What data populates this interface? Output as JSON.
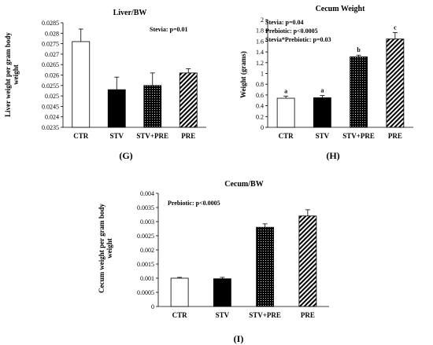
{
  "chart_data": [
    {
      "type": "bar",
      "title": "Liver/BW",
      "panel": "(G)",
      "ylabel_lines": [
        "Liver weight per gram body",
        "weight"
      ],
      "stats": [
        "Stevia: p=0.01"
      ],
      "categories": [
        "CTR",
        "STV",
        "STV+PRE",
        "PRE"
      ],
      "values": [
        0.0276,
        0.0253,
        0.0255,
        0.0261
      ],
      "errors": [
        0.0006,
        0.0006,
        0.0006,
        0.0002
      ],
      "ylim": [
        0.0235,
        0.0285
      ],
      "yticks": [
        "0.0235",
        "0.024",
        "0.0245",
        "0.025",
        "0.0255",
        "0.026",
        "0.0265",
        "0.027",
        "0.0275",
        "0.028",
        "0.0285"
      ],
      "sig_letters": []
    },
    {
      "type": "bar",
      "title": "Cecum Weight",
      "panel": "(H)",
      "ylabel_lines": [
        "Weight (grams)"
      ],
      "stats": [
        "Stevia: p=0.04",
        "Prebiotic: p<0.0005",
        "Stevia*Prebiotic: p=0.03"
      ],
      "categories": [
        "CTR",
        "STV",
        "STV+PRE",
        "PRE"
      ],
      "values": [
        0.54,
        0.55,
        1.31,
        1.64
      ],
      "errors": [
        0.04,
        0.04,
        0.03,
        0.12
      ],
      "ylim": [
        0,
        2
      ],
      "yticks": [
        "0",
        "0.2",
        "0.4",
        "0.6",
        "0.8",
        "1",
        "1.2",
        "1.4",
        "1.6",
        "1.8",
        "2"
      ],
      "sig_letters": [
        "a",
        "a",
        "b",
        "c"
      ]
    },
    {
      "type": "bar",
      "title": "Cecum/BW",
      "panel": "(I)",
      "ylabel_lines": [
        "Cecum weight per gram body",
        "weight"
      ],
      "stats": [
        "Prebiotic: p<0.0005"
      ],
      "categories": [
        "CTR",
        "STV",
        "STV+PRE",
        "PRE"
      ],
      "values": [
        0.001,
        0.00098,
        0.0028,
        0.0032
      ],
      "errors": [
        3e-05,
        5e-05,
        0.00012,
        0.00022
      ],
      "ylim": [
        0,
        0.004
      ],
      "yticks": [
        "0",
        "0.0005",
        "0.001",
        "0.0015",
        "0.002",
        "0.0025",
        "0.003",
        "0.0035",
        "0.004"
      ],
      "sig_letters": []
    }
  ],
  "bar_styles": [
    "white",
    "black",
    "dots",
    "stripes"
  ],
  "colors": {
    "bar_fill_dark": "#000000",
    "bar_stroke": "#000000",
    "background": "#ffffff"
  }
}
